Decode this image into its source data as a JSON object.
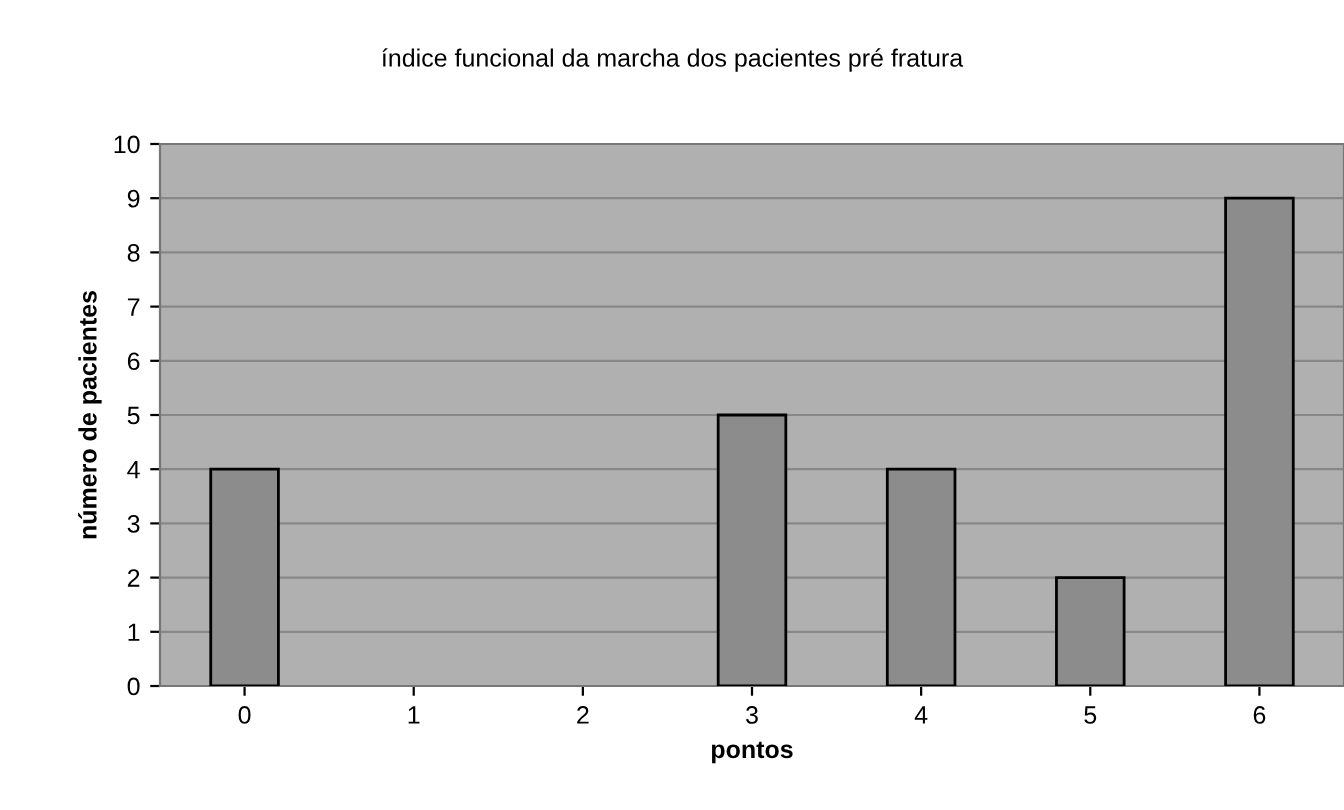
{
  "chart_data": {
    "type": "bar",
    "title": "índice funcional da marcha dos pacientes pré fratura",
    "xlabel": "pontos",
    "ylabel": "número de pacientes",
    "categories": [
      "0",
      "1",
      "2",
      "3",
      "4",
      "5",
      "6"
    ],
    "values": [
      4,
      0,
      0,
      5,
      4,
      2,
      9
    ],
    "color": "#8c8c8c",
    "ylim": [
      0,
      10
    ],
    "yticks": [
      0,
      1,
      2,
      3,
      4,
      5,
      6,
      7,
      8,
      9,
      10
    ],
    "grid": "y"
  }
}
